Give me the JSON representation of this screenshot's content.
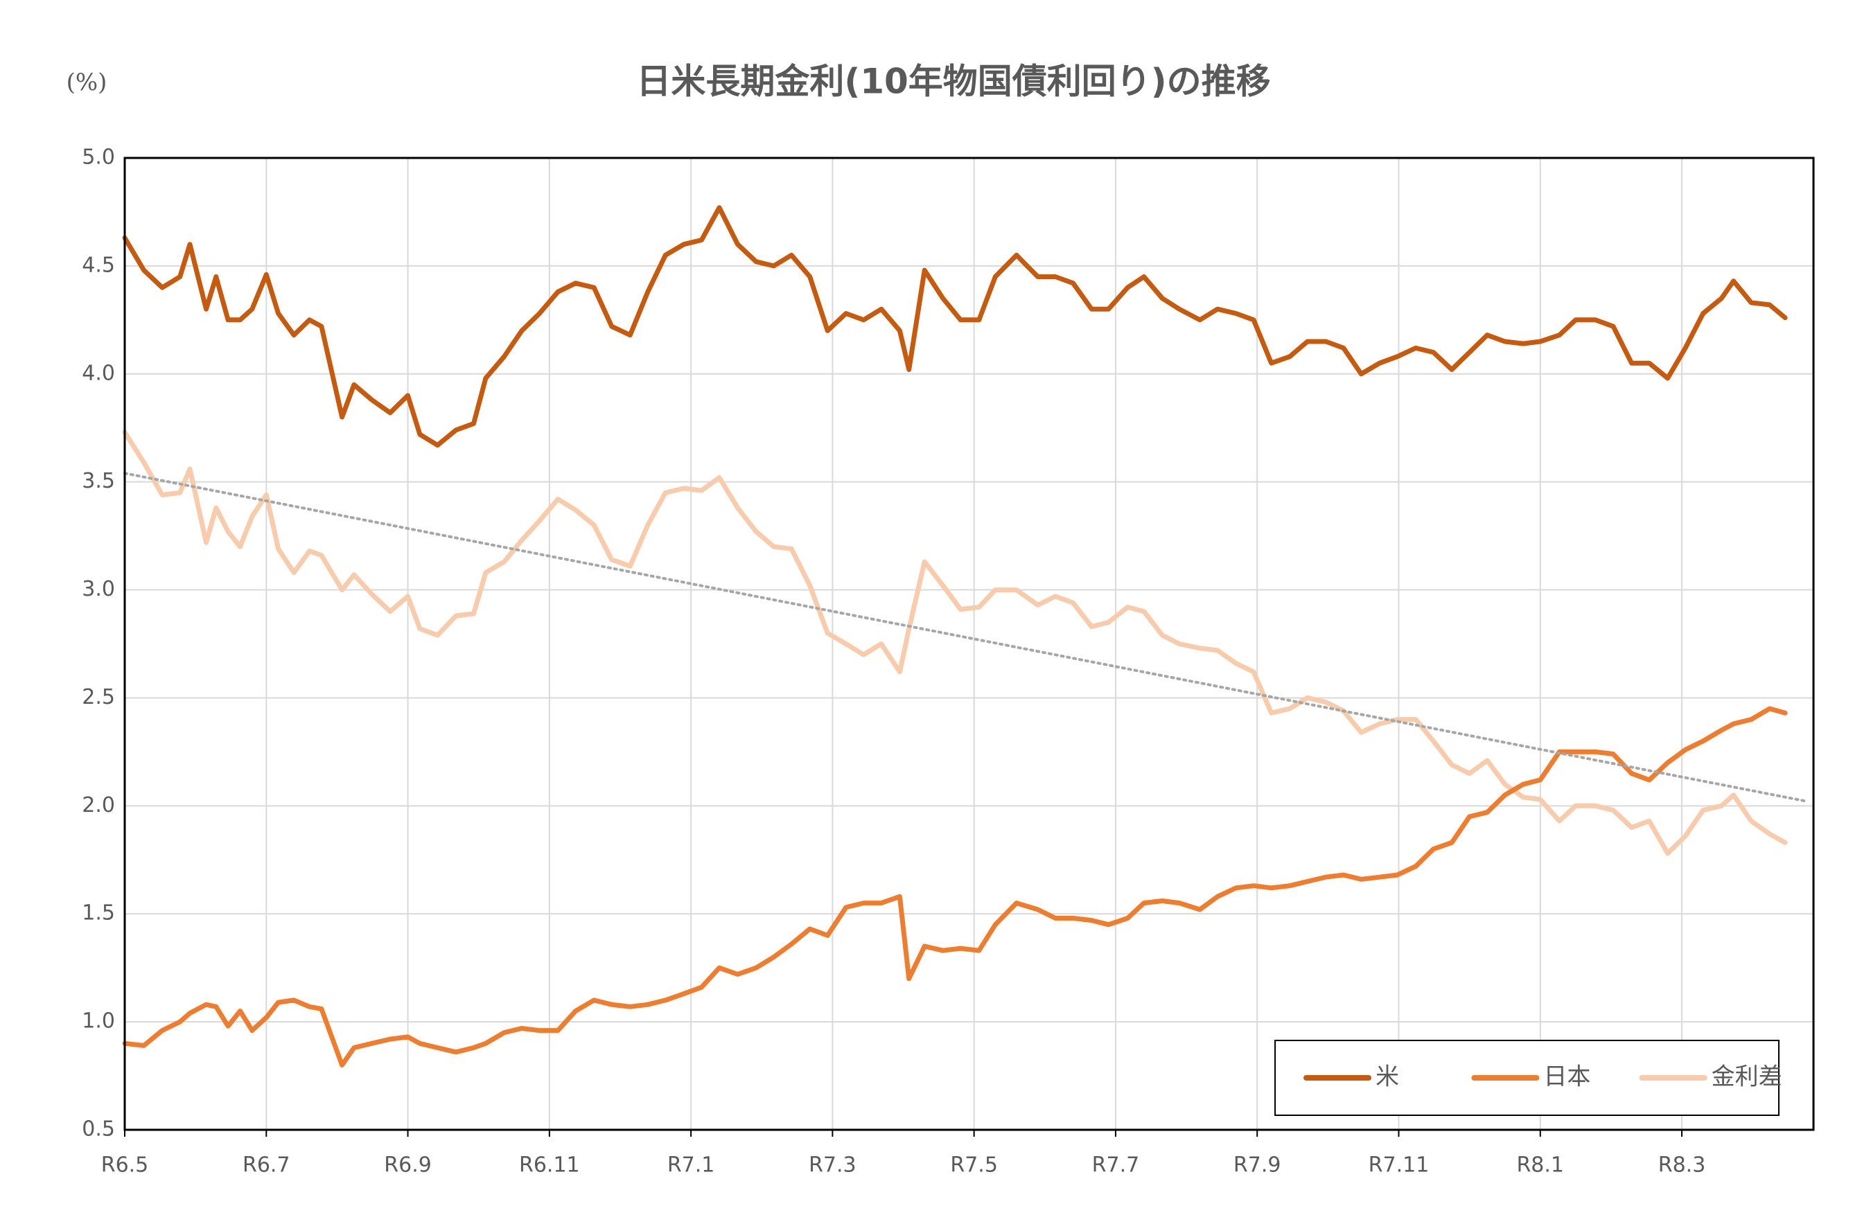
{
  "chart_data": {
    "type": "line",
    "title": "日米長期金利(10年物国債利回り)の推移",
    "y_unit": "(%)",
    "xlim": [
      0,
      23.86
    ],
    "xticks": [
      {
        "value": 0,
        "label": "R6.5"
      },
      {
        "value": 2,
        "label": "R6.7"
      },
      {
        "value": 4,
        "label": "R6.9"
      },
      {
        "value": 6,
        "label": "R6.11"
      },
      {
        "value": 8,
        "label": "R7.1"
      },
      {
        "value": 10,
        "label": "R7.3"
      },
      {
        "value": 12,
        "label": "R7.5"
      },
      {
        "value": 14,
        "label": "R7.7"
      },
      {
        "value": 16,
        "label": "R7.9"
      },
      {
        "value": 18,
        "label": "R7.11"
      },
      {
        "value": 20,
        "label": "R8.1"
      },
      {
        "value": 22,
        "label": "R8.3"
      }
    ],
    "ylim": [
      0.5,
      5.0
    ],
    "yticks": [
      0.5,
      {
        "value": 1,
        "label": "1.0"
      },
      1.5,
      {
        "value": 2,
        "label": "2.0"
      },
      2.5,
      {
        "value": 3,
        "label": "3.0"
      },
      3.5,
      {
        "value": 4,
        "label": "4.0"
      },
      4.5,
      {
        "value": 5,
        "label": "5.0"
      }
    ],
    "grid": true,
    "legend": "lower-right",
    "x": [
      0,
      0.27,
      0.53,
      0.78,
      0.92,
      1.15,
      1.29,
      1.46,
      1.63,
      1.8,
      2.0,
      2.17,
      2.39,
      2.61,
      2.78,
      3.07,
      3.24,
      3.49,
      3.75,
      4.0,
      4.17,
      4.42,
      4.68,
      4.93,
      5.1,
      5.36,
      5.61,
      5.86,
      6.12,
      6.37,
      6.63,
      6.88,
      7.14,
      7.39,
      7.64,
      7.9,
      8.15,
      8.4,
      8.66,
      8.92,
      9.17,
      9.42,
      9.68,
      9.93,
      10.19,
      10.44,
      10.69,
      10.95,
      11.08,
      11.3,
      11.56,
      11.81,
      12.07,
      12.3,
      12.6,
      12.9,
      13.15,
      13.4,
      13.66,
      13.9,
      14.17,
      14.4,
      14.66,
      14.9,
      15.19,
      15.44,
      15.7,
      15.95,
      16.2,
      16.46,
      16.71,
      16.97,
      17.22,
      17.47,
      17.73,
      17.98,
      18.24,
      18.49,
      18.75,
      19.0,
      19.25,
      19.5,
      19.76,
      20.0,
      20.27,
      20.5,
      20.78,
      21.03,
      21.29,
      21.54,
      21.8,
      22.05,
      22.3,
      22.56,
      22.73,
      22.98,
      23.24,
      23.46
    ],
    "series": [
      {
        "name": "米",
        "color": "#c55a11",
        "values": [
          4.63,
          4.48,
          4.4,
          4.45,
          4.6,
          4.3,
          4.45,
          4.25,
          4.25,
          4.3,
          4.46,
          4.28,
          4.18,
          4.25,
          4.22,
          3.8,
          3.95,
          3.88,
          3.82,
          3.9,
          3.72,
          3.67,
          3.74,
          3.77,
          3.98,
          4.08,
          4.2,
          4.28,
          4.38,
          4.42,
          4.4,
          4.22,
          4.18,
          4.38,
          4.55,
          4.6,
          4.62,
          4.77,
          4.6,
          4.52,
          4.5,
          4.55,
          4.45,
          4.2,
          4.28,
          4.25,
          4.3,
          4.2,
          4.02,
          4.48,
          4.35,
          4.25,
          4.25,
          4.45,
          4.55,
          4.45,
          4.45,
          4.42,
          4.3,
          4.3,
          4.4,
          4.45,
          4.35,
          4.3,
          4.25,
          4.3,
          4.28,
          4.25,
          4.05,
          4.08,
          4.15,
          4.15,
          4.12,
          4.0,
          4.05,
          4.08,
          4.12,
          4.1,
          4.02,
          4.1,
          4.18,
          4.15,
          4.14,
          4.15,
          4.18,
          4.25,
          4.25,
          4.22,
          4.05,
          4.05,
          3.98,
          4.12,
          4.28,
          4.35,
          4.43,
          4.33,
          4.32,
          4.26
        ]
      },
      {
        "name": "日本",
        "color": "#ed7d31",
        "values": [
          0.9,
          0.89,
          0.96,
          1.0,
          1.04,
          1.08,
          1.07,
          0.98,
          1.05,
          0.96,
          1.02,
          1.09,
          1.1,
          1.07,
          1.06,
          0.8,
          0.88,
          0.9,
          0.92,
          0.93,
          0.9,
          0.88,
          0.86,
          0.88,
          0.9,
          0.95,
          0.97,
          0.96,
          0.96,
          1.05,
          1.1,
          1.08,
          1.07,
          1.08,
          1.1,
          1.13,
          1.16,
          1.25,
          1.22,
          1.25,
          1.3,
          1.36,
          1.43,
          1.4,
          1.53,
          1.55,
          1.55,
          1.58,
          1.2,
          1.35,
          1.33,
          1.34,
          1.33,
          1.45,
          1.55,
          1.52,
          1.48,
          1.48,
          1.47,
          1.45,
          1.48,
          1.55,
          1.56,
          1.55,
          1.52,
          1.58,
          1.62,
          1.63,
          1.62,
          1.63,
          1.65,
          1.67,
          1.68,
          1.66,
          1.67,
          1.68,
          1.72,
          1.8,
          1.83,
          1.95,
          1.97,
          2.05,
          2.1,
          2.12,
          2.25,
          2.25,
          2.25,
          2.24,
          2.15,
          2.12,
          2.2,
          2.26,
          2.3,
          2.35,
          2.38,
          2.4,
          2.45,
          2.43
        ]
      },
      {
        "name": "金利差",
        "color": "#f8cbad",
        "values": [
          3.73,
          3.59,
          3.44,
          3.45,
          3.56,
          3.22,
          3.38,
          3.27,
          3.2,
          3.34,
          3.44,
          3.19,
          3.08,
          3.18,
          3.16,
          3.0,
          3.07,
          2.98,
          2.9,
          2.97,
          2.82,
          2.79,
          2.88,
          2.89,
          3.08,
          3.13,
          3.23,
          3.32,
          3.42,
          3.37,
          3.3,
          3.14,
          3.11,
          3.3,
          3.45,
          3.47,
          3.46,
          3.52,
          3.38,
          3.27,
          3.2,
          3.19,
          3.02,
          2.8,
          2.75,
          2.7,
          2.75,
          2.62,
          2.82,
          3.13,
          3.02,
          2.91,
          2.92,
          3.0,
          3.0,
          2.93,
          2.97,
          2.94,
          2.83,
          2.85,
          2.92,
          2.9,
          2.79,
          2.75,
          2.73,
          2.72,
          2.66,
          2.62,
          2.43,
          2.45,
          2.5,
          2.48,
          2.44,
          2.34,
          2.38,
          2.4,
          2.4,
          2.3,
          2.19,
          2.15,
          2.21,
          2.1,
          2.04,
          2.03,
          1.93,
          2.0,
          2.0,
          1.98,
          1.9,
          1.93,
          1.78,
          1.86,
          1.98,
          2.0,
          2.05,
          1.93,
          1.87,
          1.83
        ]
      }
    ],
    "trendline": {
      "x": [
        0,
        23.78
      ],
      "values": [
        3.54,
        2.02
      ],
      "color": "#a6a6a6"
    }
  }
}
